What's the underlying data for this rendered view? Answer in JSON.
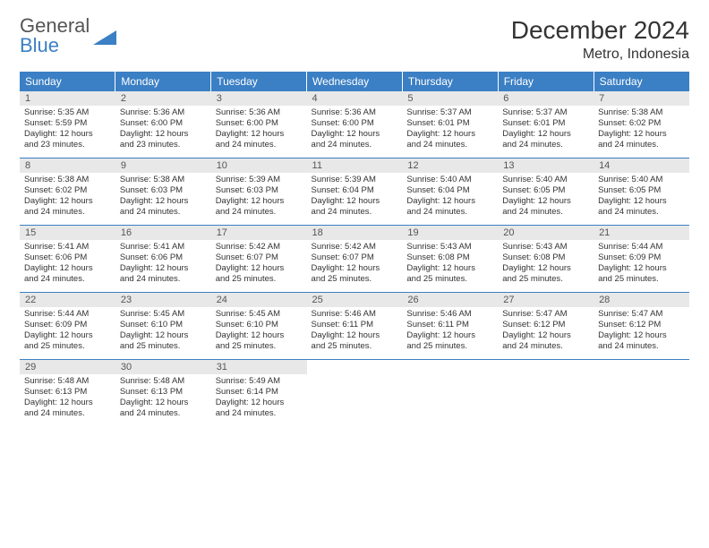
{
  "logo": {
    "text1": "General",
    "text2": "Blue"
  },
  "title": "December 2024",
  "location": "Metro, Indonesia",
  "colors": {
    "accent": "#3b7fc4",
    "header_bg": "#3b7fc4",
    "header_text": "#ffffff",
    "daynum_bg": "#e8e8e8",
    "text": "#333333",
    "background": "#ffffff"
  },
  "weekdays": [
    "Sunday",
    "Monday",
    "Tuesday",
    "Wednesday",
    "Thursday",
    "Friday",
    "Saturday"
  ],
  "weeks": [
    [
      {
        "n": "1",
        "sr": "Sunrise: 5:35 AM",
        "ss": "Sunset: 5:59 PM",
        "d1": "Daylight: 12 hours",
        "d2": "and 23 minutes."
      },
      {
        "n": "2",
        "sr": "Sunrise: 5:36 AM",
        "ss": "Sunset: 6:00 PM",
        "d1": "Daylight: 12 hours",
        "d2": "and 23 minutes."
      },
      {
        "n": "3",
        "sr": "Sunrise: 5:36 AM",
        "ss": "Sunset: 6:00 PM",
        "d1": "Daylight: 12 hours",
        "d2": "and 24 minutes."
      },
      {
        "n": "4",
        "sr": "Sunrise: 5:36 AM",
        "ss": "Sunset: 6:00 PM",
        "d1": "Daylight: 12 hours",
        "d2": "and 24 minutes."
      },
      {
        "n": "5",
        "sr": "Sunrise: 5:37 AM",
        "ss": "Sunset: 6:01 PM",
        "d1": "Daylight: 12 hours",
        "d2": "and 24 minutes."
      },
      {
        "n": "6",
        "sr": "Sunrise: 5:37 AM",
        "ss": "Sunset: 6:01 PM",
        "d1": "Daylight: 12 hours",
        "d2": "and 24 minutes."
      },
      {
        "n": "7",
        "sr": "Sunrise: 5:38 AM",
        "ss": "Sunset: 6:02 PM",
        "d1": "Daylight: 12 hours",
        "d2": "and 24 minutes."
      }
    ],
    [
      {
        "n": "8",
        "sr": "Sunrise: 5:38 AM",
        "ss": "Sunset: 6:02 PM",
        "d1": "Daylight: 12 hours",
        "d2": "and 24 minutes."
      },
      {
        "n": "9",
        "sr": "Sunrise: 5:38 AM",
        "ss": "Sunset: 6:03 PM",
        "d1": "Daylight: 12 hours",
        "d2": "and 24 minutes."
      },
      {
        "n": "10",
        "sr": "Sunrise: 5:39 AM",
        "ss": "Sunset: 6:03 PM",
        "d1": "Daylight: 12 hours",
        "d2": "and 24 minutes."
      },
      {
        "n": "11",
        "sr": "Sunrise: 5:39 AM",
        "ss": "Sunset: 6:04 PM",
        "d1": "Daylight: 12 hours",
        "d2": "and 24 minutes."
      },
      {
        "n": "12",
        "sr": "Sunrise: 5:40 AM",
        "ss": "Sunset: 6:04 PM",
        "d1": "Daylight: 12 hours",
        "d2": "and 24 minutes."
      },
      {
        "n": "13",
        "sr": "Sunrise: 5:40 AM",
        "ss": "Sunset: 6:05 PM",
        "d1": "Daylight: 12 hours",
        "d2": "and 24 minutes."
      },
      {
        "n": "14",
        "sr": "Sunrise: 5:40 AM",
        "ss": "Sunset: 6:05 PM",
        "d1": "Daylight: 12 hours",
        "d2": "and 24 minutes."
      }
    ],
    [
      {
        "n": "15",
        "sr": "Sunrise: 5:41 AM",
        "ss": "Sunset: 6:06 PM",
        "d1": "Daylight: 12 hours",
        "d2": "and 24 minutes."
      },
      {
        "n": "16",
        "sr": "Sunrise: 5:41 AM",
        "ss": "Sunset: 6:06 PM",
        "d1": "Daylight: 12 hours",
        "d2": "and 24 minutes."
      },
      {
        "n": "17",
        "sr": "Sunrise: 5:42 AM",
        "ss": "Sunset: 6:07 PM",
        "d1": "Daylight: 12 hours",
        "d2": "and 25 minutes."
      },
      {
        "n": "18",
        "sr": "Sunrise: 5:42 AM",
        "ss": "Sunset: 6:07 PM",
        "d1": "Daylight: 12 hours",
        "d2": "and 25 minutes."
      },
      {
        "n": "19",
        "sr": "Sunrise: 5:43 AM",
        "ss": "Sunset: 6:08 PM",
        "d1": "Daylight: 12 hours",
        "d2": "and 25 minutes."
      },
      {
        "n": "20",
        "sr": "Sunrise: 5:43 AM",
        "ss": "Sunset: 6:08 PM",
        "d1": "Daylight: 12 hours",
        "d2": "and 25 minutes."
      },
      {
        "n": "21",
        "sr": "Sunrise: 5:44 AM",
        "ss": "Sunset: 6:09 PM",
        "d1": "Daylight: 12 hours",
        "d2": "and 25 minutes."
      }
    ],
    [
      {
        "n": "22",
        "sr": "Sunrise: 5:44 AM",
        "ss": "Sunset: 6:09 PM",
        "d1": "Daylight: 12 hours",
        "d2": "and 25 minutes."
      },
      {
        "n": "23",
        "sr": "Sunrise: 5:45 AM",
        "ss": "Sunset: 6:10 PM",
        "d1": "Daylight: 12 hours",
        "d2": "and 25 minutes."
      },
      {
        "n": "24",
        "sr": "Sunrise: 5:45 AM",
        "ss": "Sunset: 6:10 PM",
        "d1": "Daylight: 12 hours",
        "d2": "and 25 minutes."
      },
      {
        "n": "25",
        "sr": "Sunrise: 5:46 AM",
        "ss": "Sunset: 6:11 PM",
        "d1": "Daylight: 12 hours",
        "d2": "and 25 minutes."
      },
      {
        "n": "26",
        "sr": "Sunrise: 5:46 AM",
        "ss": "Sunset: 6:11 PM",
        "d1": "Daylight: 12 hours",
        "d2": "and 25 minutes."
      },
      {
        "n": "27",
        "sr": "Sunrise: 5:47 AM",
        "ss": "Sunset: 6:12 PM",
        "d1": "Daylight: 12 hours",
        "d2": "and 24 minutes."
      },
      {
        "n": "28",
        "sr": "Sunrise: 5:47 AM",
        "ss": "Sunset: 6:12 PM",
        "d1": "Daylight: 12 hours",
        "d2": "and 24 minutes."
      }
    ],
    [
      {
        "n": "29",
        "sr": "Sunrise: 5:48 AM",
        "ss": "Sunset: 6:13 PM",
        "d1": "Daylight: 12 hours",
        "d2": "and 24 minutes."
      },
      {
        "n": "30",
        "sr": "Sunrise: 5:48 AM",
        "ss": "Sunset: 6:13 PM",
        "d1": "Daylight: 12 hours",
        "d2": "and 24 minutes."
      },
      {
        "n": "31",
        "sr": "Sunrise: 5:49 AM",
        "ss": "Sunset: 6:14 PM",
        "d1": "Daylight: 12 hours",
        "d2": "and 24 minutes."
      },
      {
        "empty": true
      },
      {
        "empty": true
      },
      {
        "empty": true
      },
      {
        "empty": true
      }
    ]
  ]
}
